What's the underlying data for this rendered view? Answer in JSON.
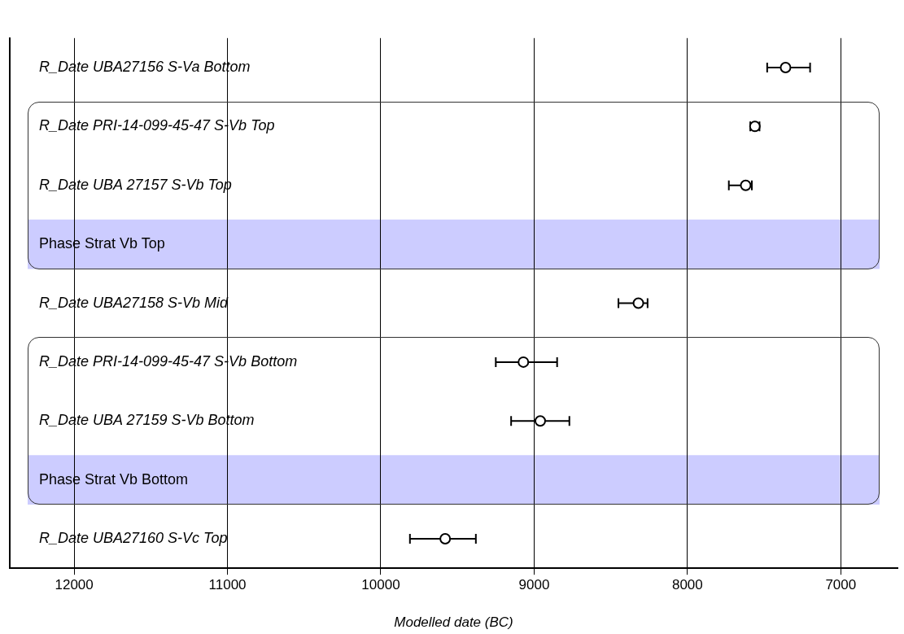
{
  "chart_data": {
    "type": "scatter",
    "xlabel": "Modelled date (BC)",
    "categories": [
      "R_Date UBA27156 S-Va Bottom",
      "R_Date PRI-14-099-45-47 S-Vb Top",
      "R_Date UBA 27157 S-Vb Top",
      "Phase Strat Vb Top",
      "R_Date UBA27158 S-Vb Mid",
      "R_Date PRI-14-099-45-47 S-Vb Bottom",
      "R_Date UBA 27159 S-Vb Bottom",
      "Phase Strat Vb Bottom",
      "R_Date UBA27160 S-Vc Top"
    ],
    "values": [
      7360,
      7560,
      7620,
      null,
      8320,
      9070,
      8960,
      null,
      9580
    ],
    "errors": [
      [
        7200,
        7480
      ],
      [
        7530,
        7590
      ],
      [
        7580,
        7730
      ],
      null,
      [
        8260,
        8450
      ],
      [
        8850,
        9250
      ],
      [
        8770,
        9150
      ],
      null,
      [
        9380,
        9810
      ]
    ],
    "xlim": [
      12420,
      6630
    ],
    "xticks": [
      12000,
      11000,
      10000,
      9000,
      8000,
      7000
    ],
    "bands": [
      {
        "axis": "y",
        "from": "Phase Strat Vb Top",
        "to": "Phase Strat Vb Top",
        "color": "#ccccff"
      },
      {
        "axis": "y",
        "from": "Phase Strat Vb Bottom",
        "to": "Phase Strat Vb Bottom",
        "color": "#ccccff"
      }
    ],
    "grid": "x",
    "legend": false,
    "marker": "circle",
    "orientation": "horizontal"
  }
}
